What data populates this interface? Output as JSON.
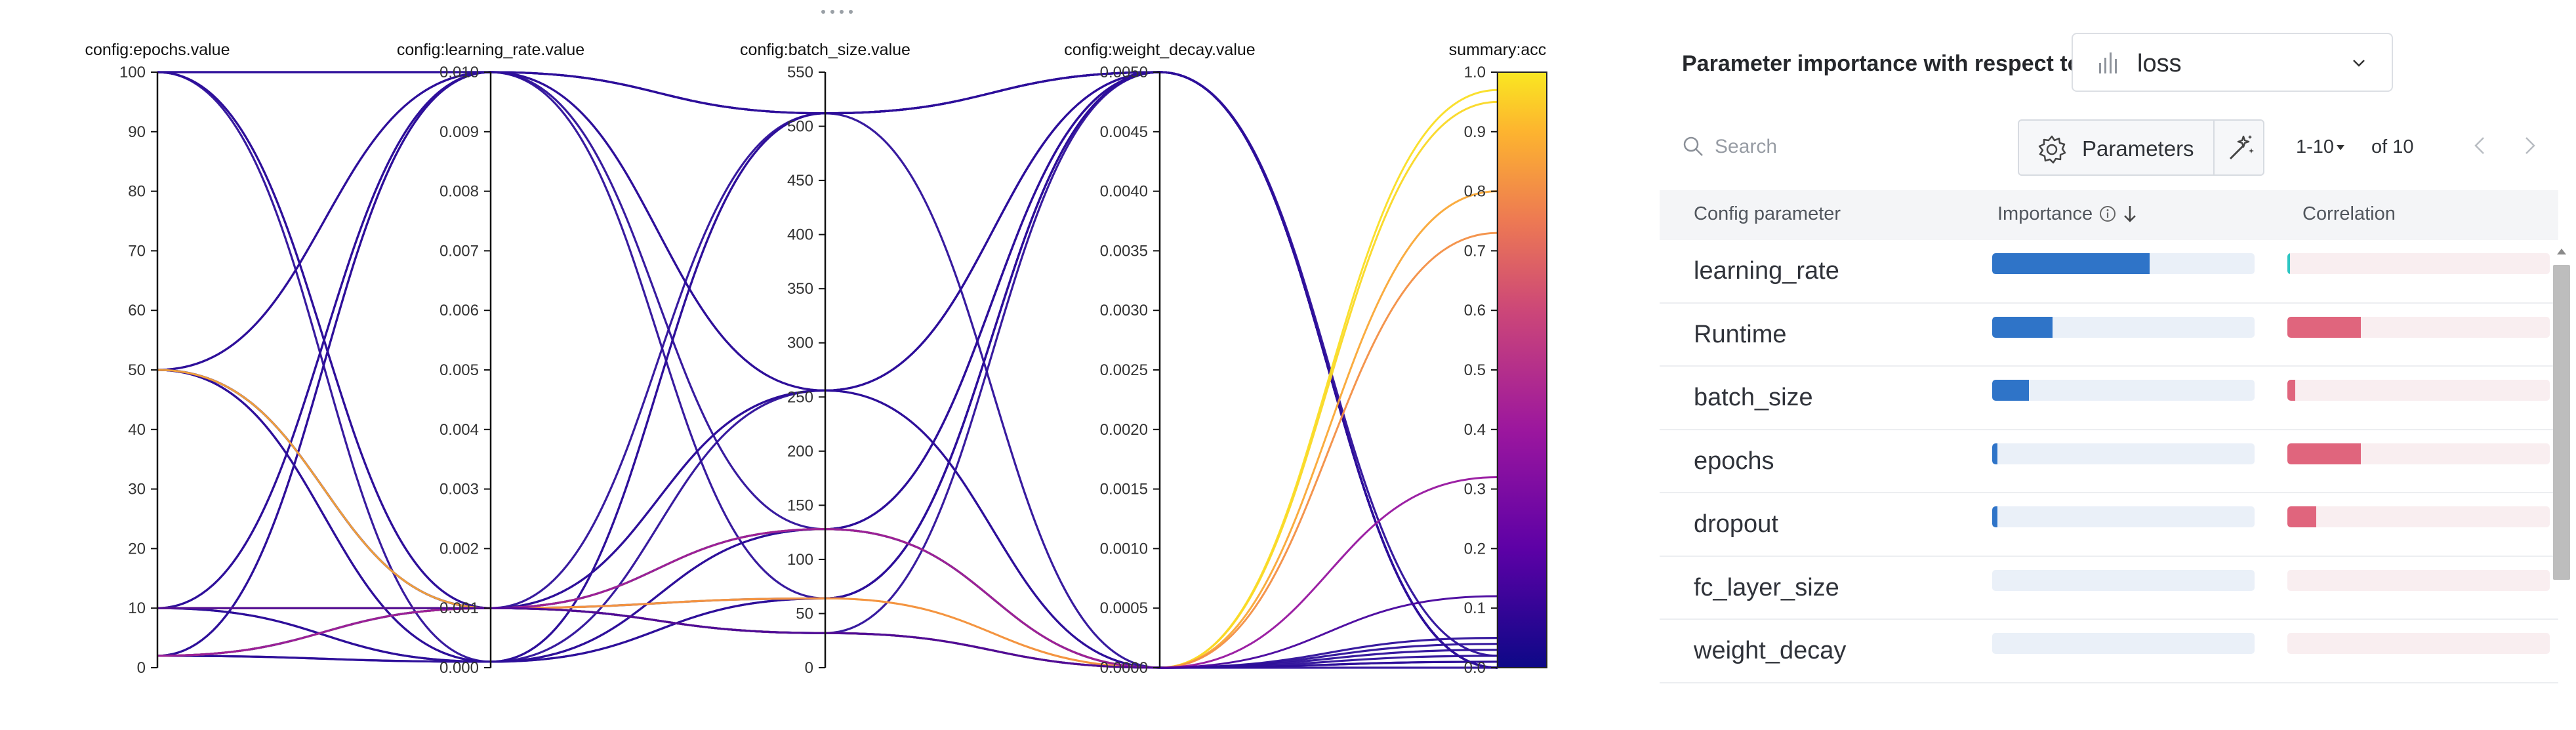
{
  "parallel_coords": {
    "axes": [
      {
        "title": "config:epochs.value",
        "ticks": [
          "100",
          "90",
          "80",
          "70",
          "60",
          "50",
          "40",
          "30",
          "20",
          "10",
          "0"
        ]
      },
      {
        "title": "config:learning_rate.value",
        "ticks": [
          "0.010",
          "0.009",
          "0.008",
          "0.007",
          "0.006",
          "0.005",
          "0.004",
          "0.003",
          "0.002",
          "0.001",
          "0.000"
        ]
      },
      {
        "title": "config:batch_size.value",
        "ticks": [
          "550",
          "500",
          "450",
          "400",
          "350",
          "300",
          "250",
          "200",
          "150",
          "100",
          "50",
          "0"
        ]
      },
      {
        "title": "config:weight_decay.value",
        "ticks": [
          "0.0050",
          "0.0045",
          "0.0040",
          "0.0035",
          "0.0030",
          "0.0025",
          "0.0020",
          "0.0015",
          "0.0010",
          "0.0005",
          "0.0000"
        ]
      },
      {
        "title": "summary:acc",
        "ticks": [
          "1.0",
          "0.9",
          "0.8",
          "0.7",
          "0.6",
          "0.5",
          "0.4",
          "0.3",
          "0.2",
          "0.1",
          "0.0"
        ]
      }
    ],
    "colors": {
      "line_default": "#2d0f9a",
      "scale": [
        "#0d0887",
        "#5d01a6",
        "#9c179e",
        "#cc4778",
        "#ed7953",
        "#fdb42f",
        "#f9e721"
      ]
    }
  },
  "chart_data": {
    "type": "parallel-coordinates",
    "axes": [
      "config:epochs.value",
      "config:learning_rate.value",
      "config:batch_size.value",
      "config:weight_decay.value",
      "summary:acc"
    ],
    "ranges": [
      [
        0,
        100
      ],
      [
        0,
        0.01
      ],
      [
        0,
        550
      ],
      [
        0,
        0.005
      ],
      [
        0,
        1.0
      ]
    ],
    "color_by": "summary:acc",
    "runs": [
      [
        100,
        0.01,
        512,
        0.005,
        0.0
      ],
      [
        100,
        0.0001,
        512,
        0.005,
        0.0
      ],
      [
        100,
        0.001,
        256,
        0.0,
        0.02
      ],
      [
        100,
        0.01,
        64,
        0.005,
        0.0
      ],
      [
        50,
        0.01,
        512,
        0.005,
        0.0
      ],
      [
        50,
        0.001,
        128,
        0.0,
        0.03
      ],
      [
        50,
        0.0001,
        64,
        0.005,
        0.0
      ],
      [
        50,
        0.001,
        32,
        0.0,
        0.01
      ],
      [
        10,
        0.01,
        256,
        0.005,
        0.0
      ],
      [
        10,
        0.001,
        512,
        0.0,
        0.0
      ],
      [
        10,
        0.0001,
        128,
        0.005,
        0.02
      ],
      [
        10,
        0.001,
        32,
        0.0,
        0.05
      ],
      [
        2,
        0.01,
        512,
        0.005,
        0.0
      ],
      [
        2,
        0.001,
        256,
        0.0,
        0.01
      ],
      [
        2,
        0.0001,
        64,
        0.005,
        0.0
      ],
      [
        2,
        0.01,
        128,
        0.0,
        0.04
      ],
      [
        2,
        0.001,
        32,
        0.005,
        0.0
      ],
      [
        10,
        0.01,
        512,
        0.005,
        0.0
      ],
      [
        50,
        0.01,
        256,
        0.005,
        0.0
      ],
      [
        100,
        0.001,
        128,
        0.005,
        0.0
      ],
      [
        2,
        0.0001,
        512,
        0.005,
        0.0
      ],
      [
        10,
        0.0001,
        256,
        0.005,
        0.0
      ],
      [
        50,
        0.0001,
        128,
        0.005,
        0.0
      ],
      [
        2,
        0.001,
        64,
        0.005,
        0.0
      ],
      [
        10,
        0.001,
        128,
        0.0,
        0.97
      ],
      [
        2,
        0.001,
        64,
        0.0,
        0.95
      ],
      [
        50,
        0.001,
        32,
        0.0,
        0.8
      ],
      [
        10,
        0.001,
        64,
        0.0,
        0.73
      ],
      [
        2,
        0.001,
        128,
        0.0,
        0.32
      ],
      [
        10,
        0.001,
        32,
        0.0,
        0.12
      ]
    ]
  },
  "panel": {
    "title": "Parameter importance with respect to",
    "metric": {
      "value": "loss"
    },
    "search": {
      "placeholder": "Search"
    },
    "parameters_button": "Parameters",
    "pagination": {
      "range": "1-10",
      "total": "of 10"
    },
    "columns": {
      "param": "Config parameter",
      "importance": "Importance",
      "correlation": "Correlation"
    },
    "rows": [
      {
        "name": "learning_rate",
        "importance": 0.6,
        "corr_value": 0.01,
        "corr_color": "#2ec6c3"
      },
      {
        "name": "Runtime",
        "importance": 0.23,
        "corr_value": 0.28,
        "corr_color": "#e0657d"
      },
      {
        "name": "batch_size",
        "importance": 0.14,
        "corr_value": 0.03,
        "corr_color": "#e0657d"
      },
      {
        "name": "epochs",
        "importance": 0.02,
        "corr_value": 0.28,
        "corr_color": "#e0657d"
      },
      {
        "name": "dropout",
        "importance": 0.02,
        "corr_value": 0.11,
        "corr_color": "#e0657d"
      },
      {
        "name": "fc_layer_size",
        "importance": 0.0,
        "corr_value": 0.0,
        "corr_color": "#e0657d"
      },
      {
        "name": "weight_decay",
        "importance": 0.0,
        "corr_value": 0.0,
        "corr_color": "#e0657d"
      }
    ],
    "colors": {
      "importance_bar": "#2f74c8",
      "importance_track": "#eaf0f8",
      "correlation_track": "#f9eef0"
    }
  }
}
